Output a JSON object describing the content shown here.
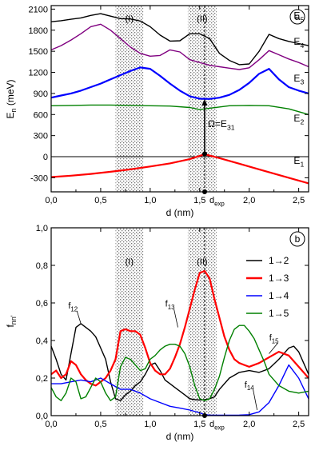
{
  "chart_data": [
    {
      "type": "line",
      "panel_label": "a",
      "xlabel": "d (nm)",
      "ylabel_main": "E",
      "ylabel_sub": "n",
      "ylabel_unit": " (meV)",
      "xlim": [
        0,
        2.6
      ],
      "ylim": [
        -500,
        2150
      ],
      "xticks": [
        0.0,
        0.5,
        1.0,
        1.5,
        2.0,
        2.5
      ],
      "xtick_labels": [
        "0,0",
        "0,5",
        "1,0",
        "1,5",
        "2,0",
        "2,5"
      ],
      "yticks": [
        -300,
        0,
        300,
        600,
        900,
        1200,
        1500,
        1800,
        2100
      ],
      "ytick_labels": [
        "-300",
        "0",
        "300",
        "600",
        "900",
        "1200",
        "1500",
        "1800",
        "2100"
      ],
      "shaded_regions": [
        {
          "label": "(I)",
          "x": [
            0.65,
            0.93
          ]
        },
        {
          "label": "(II)",
          "x": [
            1.38,
            1.67
          ]
        }
      ],
      "d_exp": 1.55,
      "d_exp_label_main": "d",
      "d_exp_label_sub": "exp",
      "omega_label_main": "Ω=E",
      "omega_label_sub": "31",
      "omega_arrow": {
        "x": 1.55,
        "y_from": 40,
        "y_to": 820
      },
      "series": [
        {
          "name": "E5",
          "label_main": "E",
          "label_sub": "5",
          "color": "#000000",
          "x": [
            0,
            0.1,
            0.2,
            0.3,
            0.4,
            0.5,
            0.6,
            0.7,
            0.8,
            0.9,
            1.0,
            1.1,
            1.2,
            1.3,
            1.4,
            1.5,
            1.6,
            1.7,
            1.8,
            1.9,
            2.0,
            2.1,
            2.2,
            2.3,
            2.4,
            2.5,
            2.6
          ],
          "y": [
            1920,
            1935,
            1955,
            1975,
            2010,
            2035,
            2000,
            1965,
            1960,
            1930,
            1850,
            1730,
            1645,
            1650,
            1750,
            1750,
            1680,
            1470,
            1370,
            1310,
            1320,
            1500,
            1740,
            1680,
            1640,
            1610,
            1580
          ]
        },
        {
          "name": "E4",
          "label_main": "E",
          "label_sub": "4",
          "color": "#800080",
          "x": [
            0,
            0.1,
            0.2,
            0.3,
            0.4,
            0.5,
            0.6,
            0.7,
            0.8,
            0.9,
            1.0,
            1.1,
            1.2,
            1.3,
            1.4,
            1.5,
            1.6,
            1.7,
            1.8,
            1.9,
            2.0,
            2.1,
            2.2,
            2.3,
            2.4,
            2.5,
            2.6
          ],
          "y": [
            1520,
            1580,
            1660,
            1750,
            1850,
            1885,
            1800,
            1680,
            1560,
            1470,
            1430,
            1440,
            1520,
            1490,
            1380,
            1340,
            1300,
            1280,
            1260,
            1240,
            1265,
            1380,
            1510,
            1450,
            1390,
            1340,
            1280
          ]
        },
        {
          "name": "E3",
          "label_main": "E",
          "label_sub": "3",
          "color": "#0000ff",
          "x": [
            0,
            0.1,
            0.2,
            0.3,
            0.4,
            0.5,
            0.6,
            0.7,
            0.8,
            0.9,
            1.0,
            1.1,
            1.2,
            1.3,
            1.4,
            1.5,
            1.6,
            1.7,
            1.8,
            1.9,
            2.0,
            2.1,
            2.2,
            2.3,
            2.4,
            2.5,
            2.6
          ],
          "y": [
            840,
            870,
            900,
            940,
            990,
            1040,
            1100,
            1160,
            1220,
            1270,
            1250,
            1150,
            1040,
            940,
            860,
            825,
            822,
            840,
            880,
            950,
            1050,
            1180,
            1250,
            1100,
            990,
            940,
            900
          ]
        },
        {
          "name": "E2",
          "label_main": "E",
          "label_sub": "2",
          "color": "#008000",
          "x": [
            0,
            0.2,
            0.4,
            0.6,
            0.8,
            1.0,
            1.2,
            1.4,
            1.5,
            1.6,
            1.8,
            2.0,
            2.2,
            2.4,
            2.6
          ],
          "y": [
            725,
            730,
            735,
            735,
            730,
            725,
            720,
            700,
            670,
            690,
            725,
            730,
            725,
            680,
            600
          ]
        },
        {
          "name": "E1",
          "label_main": "E",
          "label_sub": "1",
          "color": "#ff0000",
          "x": [
            0,
            0.2,
            0.4,
            0.6,
            0.8,
            1.0,
            1.2,
            1.4,
            1.55,
            1.7,
            1.9,
            2.1,
            2.3,
            2.5,
            2.6
          ],
          "y": [
            -290,
            -270,
            -245,
            -215,
            -180,
            -140,
            -95,
            -35,
            35,
            -20,
            -100,
            -180,
            -260,
            -340,
            -380
          ]
        }
      ]
    },
    {
      "type": "line",
      "panel_label": "b",
      "xlabel": "d (nm)",
      "ylabel_main": "f",
      "ylabel_sub": "nn'",
      "xlim": [
        0,
        2.6
      ],
      "ylim": [
        0,
        1.0
      ],
      "xticks": [
        0.0,
        0.5,
        1.0,
        1.5,
        2.0,
        2.5
      ],
      "xtick_labels": [
        "0,0",
        "0,5",
        "1,0",
        "1,5",
        "2,0",
        "2,5"
      ],
      "yticks": [
        0.0,
        0.2,
        0.4,
        0.6,
        0.8,
        1.0
      ],
      "ytick_labels": [
        "0,0",
        "0,2",
        "0,4",
        "0,6",
        "0,8",
        "1,0"
      ],
      "shaded_regions": [
        {
          "label": "(I)",
          "x": [
            0.65,
            0.93
          ]
        },
        {
          "label": "(II)",
          "x": [
            1.38,
            1.67
          ]
        }
      ],
      "d_exp": 1.55,
      "d_exp_label_main": "d",
      "d_exp_label_sub": "exp",
      "legend_position": "top-right",
      "series": [
        {
          "name": "1→2",
          "color": "#000000",
          "curve_label_main": "f",
          "curve_label_sub": "12",
          "x": [
            0,
            0.05,
            0.1,
            0.15,
            0.2,
            0.25,
            0.3,
            0.35,
            0.4,
            0.45,
            0.5,
            0.55,
            0.6,
            0.65,
            0.7,
            0.75,
            0.8,
            0.85,
            0.9,
            0.95,
            1.0,
            1.05,
            1.1,
            1.15,
            1.2,
            1.25,
            1.3,
            1.35,
            1.4,
            1.45,
            1.5,
            1.55,
            1.6,
            1.65,
            1.7,
            1.8,
            1.9,
            2.0,
            2.1,
            2.2,
            2.3,
            2.4,
            2.45,
            2.5,
            2.55,
            2.6
          ],
          "y": [
            0.37,
            0.3,
            0.22,
            0.19,
            0.33,
            0.47,
            0.49,
            0.47,
            0.45,
            0.42,
            0.36,
            0.3,
            0.18,
            0.09,
            0.08,
            0.11,
            0.13,
            0.16,
            0.18,
            0.22,
            0.27,
            0.28,
            0.24,
            0.19,
            0.17,
            0.15,
            0.13,
            0.11,
            0.09,
            0.085,
            0.083,
            0.085,
            0.09,
            0.1,
            0.14,
            0.2,
            0.23,
            0.24,
            0.23,
            0.25,
            0.3,
            0.36,
            0.37,
            0.34,
            0.28,
            0.22
          ]
        },
        {
          "name": "1→3",
          "color": "#ff0000",
          "curve_label_main": "f",
          "curve_label_sub": "13",
          "x": [
            0,
            0.05,
            0.1,
            0.15,
            0.2,
            0.25,
            0.3,
            0.35,
            0.4,
            0.45,
            0.5,
            0.55,
            0.6,
            0.65,
            0.7,
            0.75,
            0.8,
            0.85,
            0.9,
            0.95,
            1.0,
            1.05,
            1.1,
            1.15,
            1.2,
            1.25,
            1.3,
            1.35,
            1.4,
            1.45,
            1.5,
            1.55,
            1.6,
            1.65,
            1.7,
            1.75,
            1.8,
            1.85,
            1.9,
            1.95,
            2.0,
            2.1,
            2.2,
            2.3,
            2.4,
            2.5,
            2.6
          ],
          "y": [
            0.22,
            0.24,
            0.2,
            0.22,
            0.29,
            0.27,
            0.22,
            0.19,
            0.17,
            0.16,
            0.18,
            0.2,
            0.24,
            0.3,
            0.45,
            0.46,
            0.45,
            0.45,
            0.43,
            0.36,
            0.28,
            0.24,
            0.22,
            0.22,
            0.25,
            0.31,
            0.38,
            0.47,
            0.57,
            0.67,
            0.76,
            0.77,
            0.73,
            0.62,
            0.52,
            0.42,
            0.35,
            0.3,
            0.28,
            0.27,
            0.26,
            0.28,
            0.31,
            0.34,
            0.32,
            0.26,
            0.2
          ]
        },
        {
          "name": "1→4",
          "color": "#0000ff",
          "curve_label_main": "f",
          "curve_label_sub": "14",
          "x": [
            0,
            0.1,
            0.2,
            0.3,
            0.4,
            0.5,
            0.6,
            0.7,
            0.8,
            0.9,
            1.0,
            1.1,
            1.2,
            1.3,
            1.4,
            1.5,
            1.55,
            1.6,
            1.7,
            1.8,
            1.9,
            2.0,
            2.1,
            2.2,
            2.3,
            2.4,
            2.5,
            2.6
          ],
          "y": [
            0.17,
            0.17,
            0.18,
            0.19,
            0.18,
            0.2,
            0.17,
            0.14,
            0.14,
            0.12,
            0.09,
            0.07,
            0.05,
            0.04,
            0.03,
            0.015,
            0.005,
            0.003,
            0.002,
            0.002,
            0.003,
            0.005,
            0.02,
            0.07,
            0.16,
            0.27,
            0.2,
            0.09
          ]
        },
        {
          "name": "1→5",
          "color": "#008000",
          "curve_label_main": "f",
          "curve_label_sub": "15",
          "x": [
            0,
            0.05,
            0.1,
            0.15,
            0.2,
            0.25,
            0.3,
            0.35,
            0.4,
            0.45,
            0.5,
            0.55,
            0.6,
            0.65,
            0.7,
            0.75,
            0.8,
            0.85,
            0.9,
            0.95,
            1.0,
            1.05,
            1.1,
            1.15,
            1.2,
            1.25,
            1.3,
            1.35,
            1.4,
            1.45,
            1.5,
            1.55,
            1.6,
            1.65,
            1.7,
            1.75,
            1.8,
            1.85,
            1.9,
            1.95,
            2.0,
            2.05,
            2.1,
            2.15,
            2.2,
            2.3,
            2.4,
            2.5,
            2.6
          ],
          "y": [
            0.15,
            0.1,
            0.08,
            0.12,
            0.2,
            0.18,
            0.09,
            0.1,
            0.15,
            0.2,
            0.18,
            0.12,
            0.08,
            0.1,
            0.26,
            0.31,
            0.3,
            0.27,
            0.24,
            0.25,
            0.3,
            0.32,
            0.35,
            0.37,
            0.38,
            0.38,
            0.37,
            0.33,
            0.26,
            0.16,
            0.09,
            0.08,
            0.09,
            0.14,
            0.21,
            0.31,
            0.4,
            0.46,
            0.48,
            0.48,
            0.45,
            0.41,
            0.35,
            0.29,
            0.22,
            0.16,
            0.13,
            0.12,
            0.13
          ]
        }
      ]
    }
  ]
}
